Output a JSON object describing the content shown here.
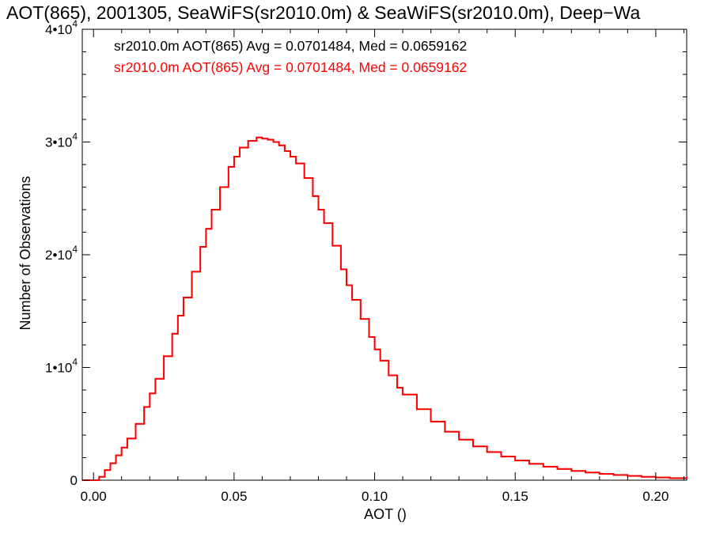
{
  "chart_data": {
    "type": "line",
    "title": "AOT(865), 2001305, SeaWiFS(sr2010.0m) & SeaWiFS(sr2010.0m), Deep−Wa",
    "xlabel": "AOT ()",
    "ylabel": "Number of Observations",
    "xlim": [
      -0.004,
      0.211
    ],
    "ylim": [
      0,
      40000
    ],
    "x_ticks": [
      {
        "value": 0.0,
        "label": "0.00"
      },
      {
        "value": 0.05,
        "label": "0.05"
      },
      {
        "value": 0.1,
        "label": "0.10"
      },
      {
        "value": 0.15,
        "label": "0.15"
      },
      {
        "value": 0.2,
        "label": "0.20"
      }
    ],
    "y_ticks": [
      {
        "value": 0,
        "mant": "0",
        "exp": ""
      },
      {
        "value": 10000,
        "mant": "1•10",
        "exp": "4"
      },
      {
        "value": 20000,
        "mant": "2•10",
        "exp": "4"
      },
      {
        "value": 30000,
        "mant": "3•10",
        "exp": "4"
      },
      {
        "value": 40000,
        "mant": "4•10",
        "exp": "4"
      }
    ],
    "grid": false,
    "legend_position": "top-left",
    "legend": [
      {
        "text": "sr2010.0m AOT(865) Avg = 0.0701484, Med = 0.0659162",
        "color": "#000000"
      },
      {
        "text": "sr2010.0m AOT(865) Avg = 0.0701484, Med = 0.0659162",
        "color": "#ff0000"
      }
    ],
    "series": [
      {
        "style": "histogram-step",
        "color": "#000000",
        "x": [
          -0.004,
          0.0,
          0.002,
          0.004,
          0.006,
          0.008,
          0.01,
          0.012,
          0.015,
          0.018,
          0.02,
          0.022,
          0.025,
          0.028,
          0.03,
          0.032,
          0.035,
          0.038,
          0.04,
          0.042,
          0.045,
          0.048,
          0.05,
          0.052,
          0.055,
          0.058,
          0.06,
          0.062,
          0.064,
          0.066,
          0.068,
          0.07,
          0.072,
          0.075,
          0.078,
          0.08,
          0.082,
          0.085,
          0.088,
          0.09,
          0.092,
          0.095,
          0.098,
          0.1,
          0.102,
          0.105,
          0.108,
          0.11,
          0.115,
          0.12,
          0.125,
          0.13,
          0.135,
          0.14,
          0.145,
          0.15,
          0.155,
          0.16,
          0.165,
          0.17,
          0.175,
          0.18,
          0.185,
          0.19,
          0.195,
          0.2,
          0.205,
          0.211
        ],
        "y": [
          0,
          0,
          300,
          900,
          1500,
          2200,
          2900,
          3700,
          5000,
          6500,
          7700,
          9000,
          11000,
          13000,
          14600,
          16200,
          18500,
          20700,
          22300,
          24000,
          26000,
          27800,
          28700,
          29500,
          30100,
          30400,
          30300,
          30200,
          30000,
          29700,
          29200,
          28700,
          28100,
          26800,
          25200,
          24000,
          22800,
          20800,
          18700,
          17300,
          16000,
          14300,
          12700,
          11600,
          10600,
          9300,
          8200,
          7600,
          6300,
          5200,
          4300,
          3600,
          3000,
          2500,
          2100,
          1750,
          1450,
          1200,
          1000,
          820,
          680,
          560,
          460,
          380,
          300,
          240,
          180,
          130
        ]
      },
      {
        "style": "histogram-step",
        "color": "#ff0000",
        "x": [
          -0.004,
          0.0,
          0.002,
          0.004,
          0.006,
          0.008,
          0.01,
          0.012,
          0.015,
          0.018,
          0.02,
          0.022,
          0.025,
          0.028,
          0.03,
          0.032,
          0.035,
          0.038,
          0.04,
          0.042,
          0.045,
          0.048,
          0.05,
          0.052,
          0.055,
          0.058,
          0.06,
          0.062,
          0.064,
          0.066,
          0.068,
          0.07,
          0.072,
          0.075,
          0.078,
          0.08,
          0.082,
          0.085,
          0.088,
          0.09,
          0.092,
          0.095,
          0.098,
          0.1,
          0.102,
          0.105,
          0.108,
          0.11,
          0.115,
          0.12,
          0.125,
          0.13,
          0.135,
          0.14,
          0.145,
          0.15,
          0.155,
          0.16,
          0.165,
          0.17,
          0.175,
          0.18,
          0.185,
          0.19,
          0.195,
          0.2,
          0.205,
          0.211
        ],
        "y": [
          0,
          0,
          300,
          900,
          1500,
          2200,
          2900,
          3700,
          5000,
          6500,
          7700,
          9000,
          11000,
          13000,
          14600,
          16200,
          18500,
          20700,
          22300,
          24000,
          26000,
          27800,
          28700,
          29500,
          30100,
          30400,
          30300,
          30200,
          30000,
          29700,
          29200,
          28700,
          28100,
          26800,
          25200,
          24000,
          22800,
          20800,
          18700,
          17300,
          16000,
          14300,
          12700,
          11600,
          10600,
          9300,
          8200,
          7600,
          6300,
          5200,
          4300,
          3600,
          3000,
          2500,
          2100,
          1750,
          1450,
          1200,
          1000,
          820,
          680,
          560,
          460,
          380,
          300,
          240,
          180,
          130
        ]
      }
    ]
  }
}
